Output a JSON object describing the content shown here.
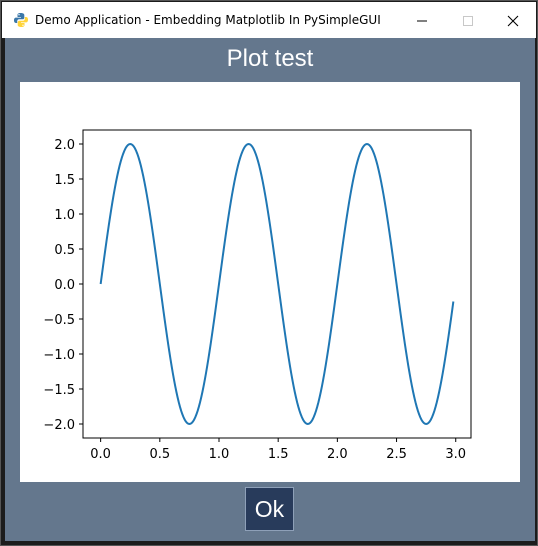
{
  "window": {
    "title": "Demo Application - Embedding Matplotlib In PySimpleGUI"
  },
  "content": {
    "heading": "Plot test",
    "ok_label": "Ok"
  },
  "chart_data": {
    "type": "line",
    "function": "2*sin(2*pi*t)",
    "x_start": 0,
    "x_end": 2.98,
    "x_step": 0.01,
    "xlim": [
      -0.149,
      3.129
    ],
    "ylim": [
      -2.2,
      2.2
    ],
    "x_ticks": [
      "0.0",
      "0.5",
      "1.0",
      "1.5",
      "2.0",
      "2.5",
      "3.0"
    ],
    "y_ticks": [
      "2.0",
      "1.5",
      "1.0",
      "0.5",
      "0.0",
      "−0.5",
      "−1.0",
      "−1.5",
      "−2.0"
    ],
    "line_color": "#1f77b4",
    "title": "",
    "xlabel": "",
    "ylabel": ""
  },
  "colors": {
    "window_bg": "#64778d",
    "button_bg": "#283b5b"
  }
}
